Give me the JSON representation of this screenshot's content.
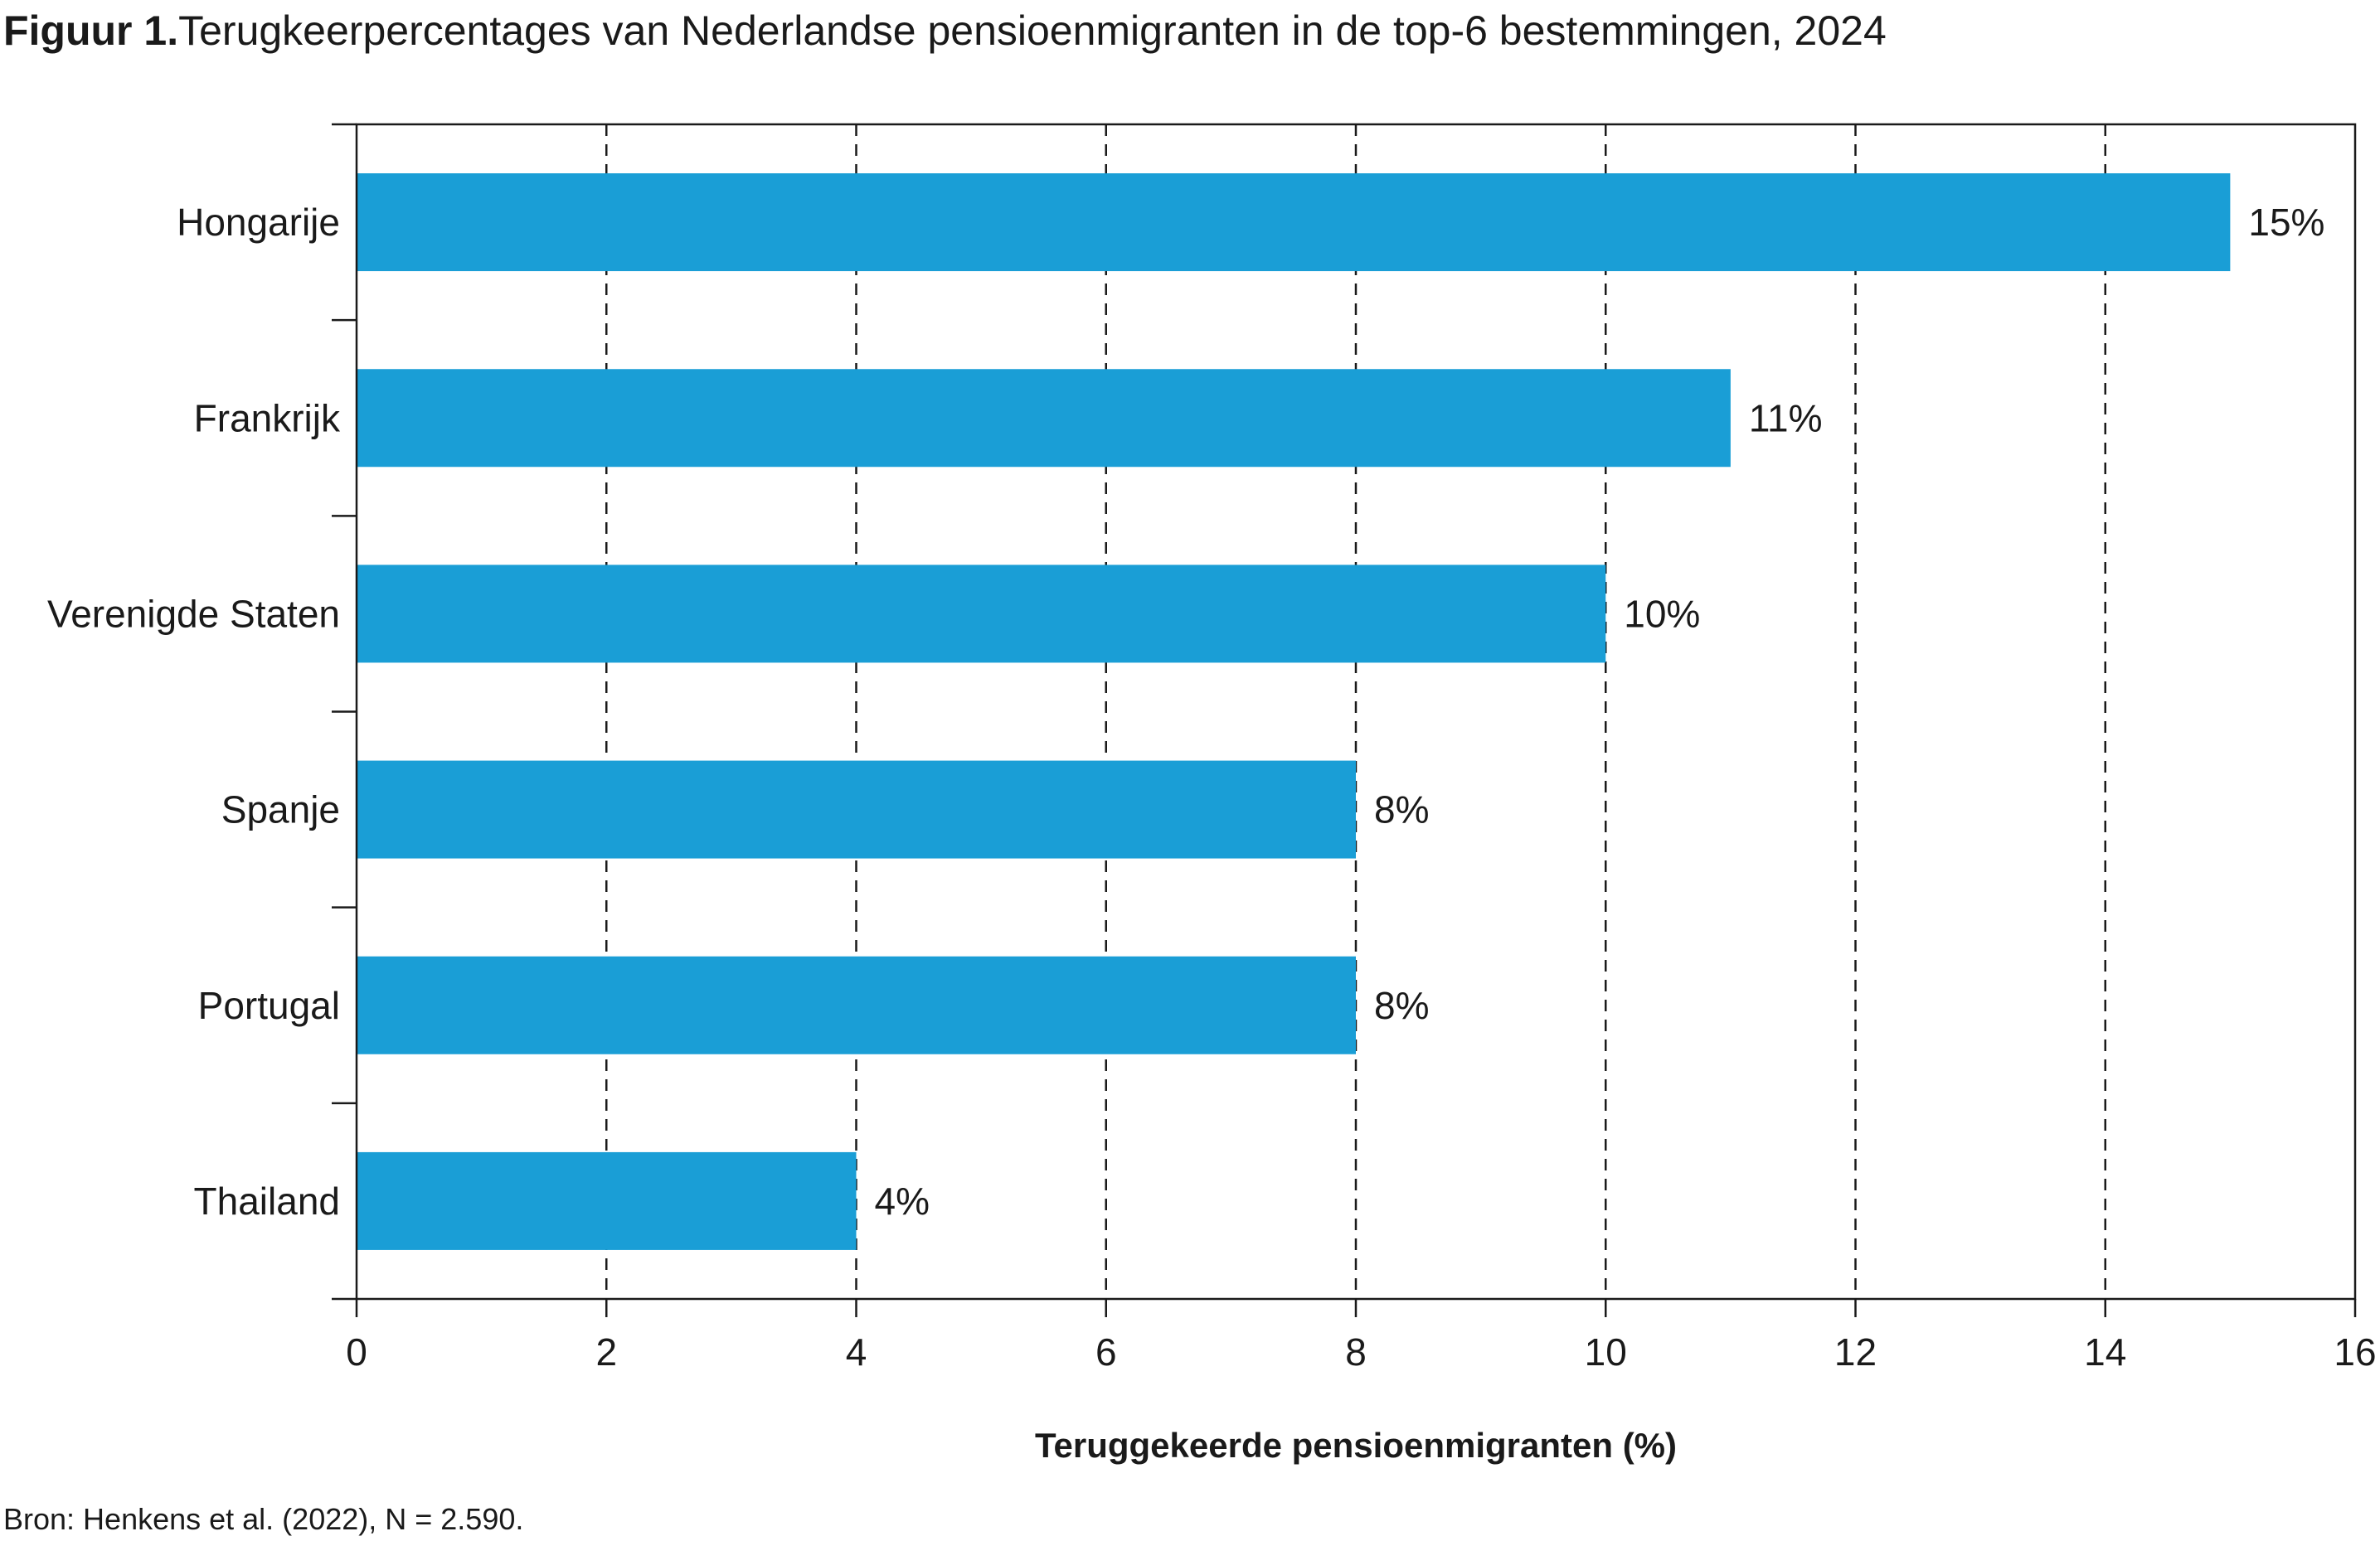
{
  "figure": {
    "number_label": "Figuur 1.",
    "title": "Terugkeerpercentages van Nederlandse pensioenmigranten in de top-6 bestemmingen, 2024",
    "source": "Bron: Henkens et al. (2022), N = 2.590."
  },
  "colors": {
    "bar": "#1a9ed6",
    "axis": "#1a1a1a",
    "grid": "#1a1a1a"
  },
  "chart_data": {
    "type": "bar",
    "orientation": "horizontal",
    "title": "Terugkeerpercentages van Nederlandse pensioenmigranten in de top-6 bestemmingen, 2024",
    "xlabel": "Teruggekeerde pensioenmigranten (%)",
    "ylabel": "",
    "xlim": [
      0,
      16
    ],
    "xticks": [
      0,
      2,
      4,
      6,
      8,
      10,
      12,
      14,
      16
    ],
    "grid": "vertical dashed",
    "legend": "none",
    "categories": [
      "Hongarije",
      "Frankrijk",
      "Verenigde Staten",
      "Spanje",
      "Portugal",
      "Thailand"
    ],
    "values": [
      15,
      11,
      10,
      8,
      8,
      4
    ],
    "data_labels": [
      "15%",
      "11%",
      "10%",
      "8%",
      "8%",
      "4%"
    ]
  }
}
